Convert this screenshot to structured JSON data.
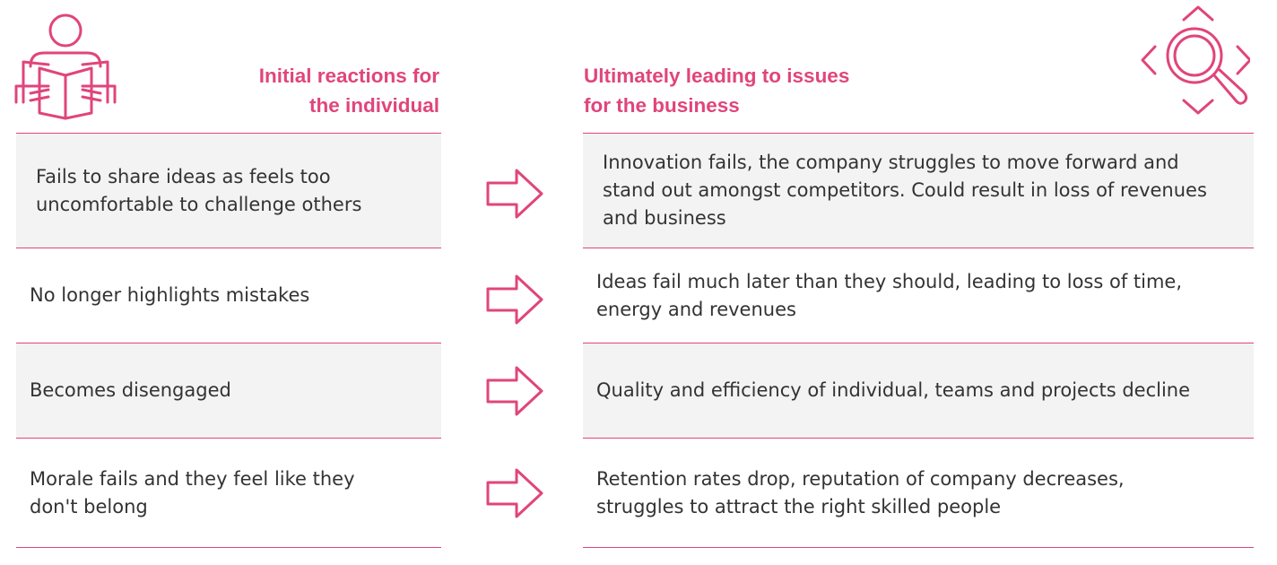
{
  "headers": {
    "left_line1": "Initial reactions for",
    "left_line2": "the individual",
    "right_line1": "Ultimately leading to issues",
    "right_line2": "for the business"
  },
  "rows": [
    {
      "individual": "Fails to share ideas as feels too uncomfortable to challenge others",
      "business": "Innovation fails, the company struggles to move forward and stand out amongst competitors. Could result in loss of revenues and business"
    },
    {
      "individual": "No longer highlights mistakes",
      "business": "Ideas fail much later than they should, leading to loss of time, energy and revenues"
    },
    {
      "individual": "Becomes disengaged",
      "business": "Quality and efficiency of individual, teams and projects decline"
    },
    {
      "individual": "Morale fails and they feel like they don't belong",
      "business": "Retention rates drop, reputation of company decreases, struggles to attract the right skilled people"
    }
  ],
  "icons": {
    "left": "person-reading-icon",
    "right": "magnifier-with-arrows-icon",
    "row_connector": "right-arrow-icon"
  },
  "colors": {
    "accent": "#e0457b",
    "shaded_row": "#f3f3f3",
    "text": "#333333"
  }
}
